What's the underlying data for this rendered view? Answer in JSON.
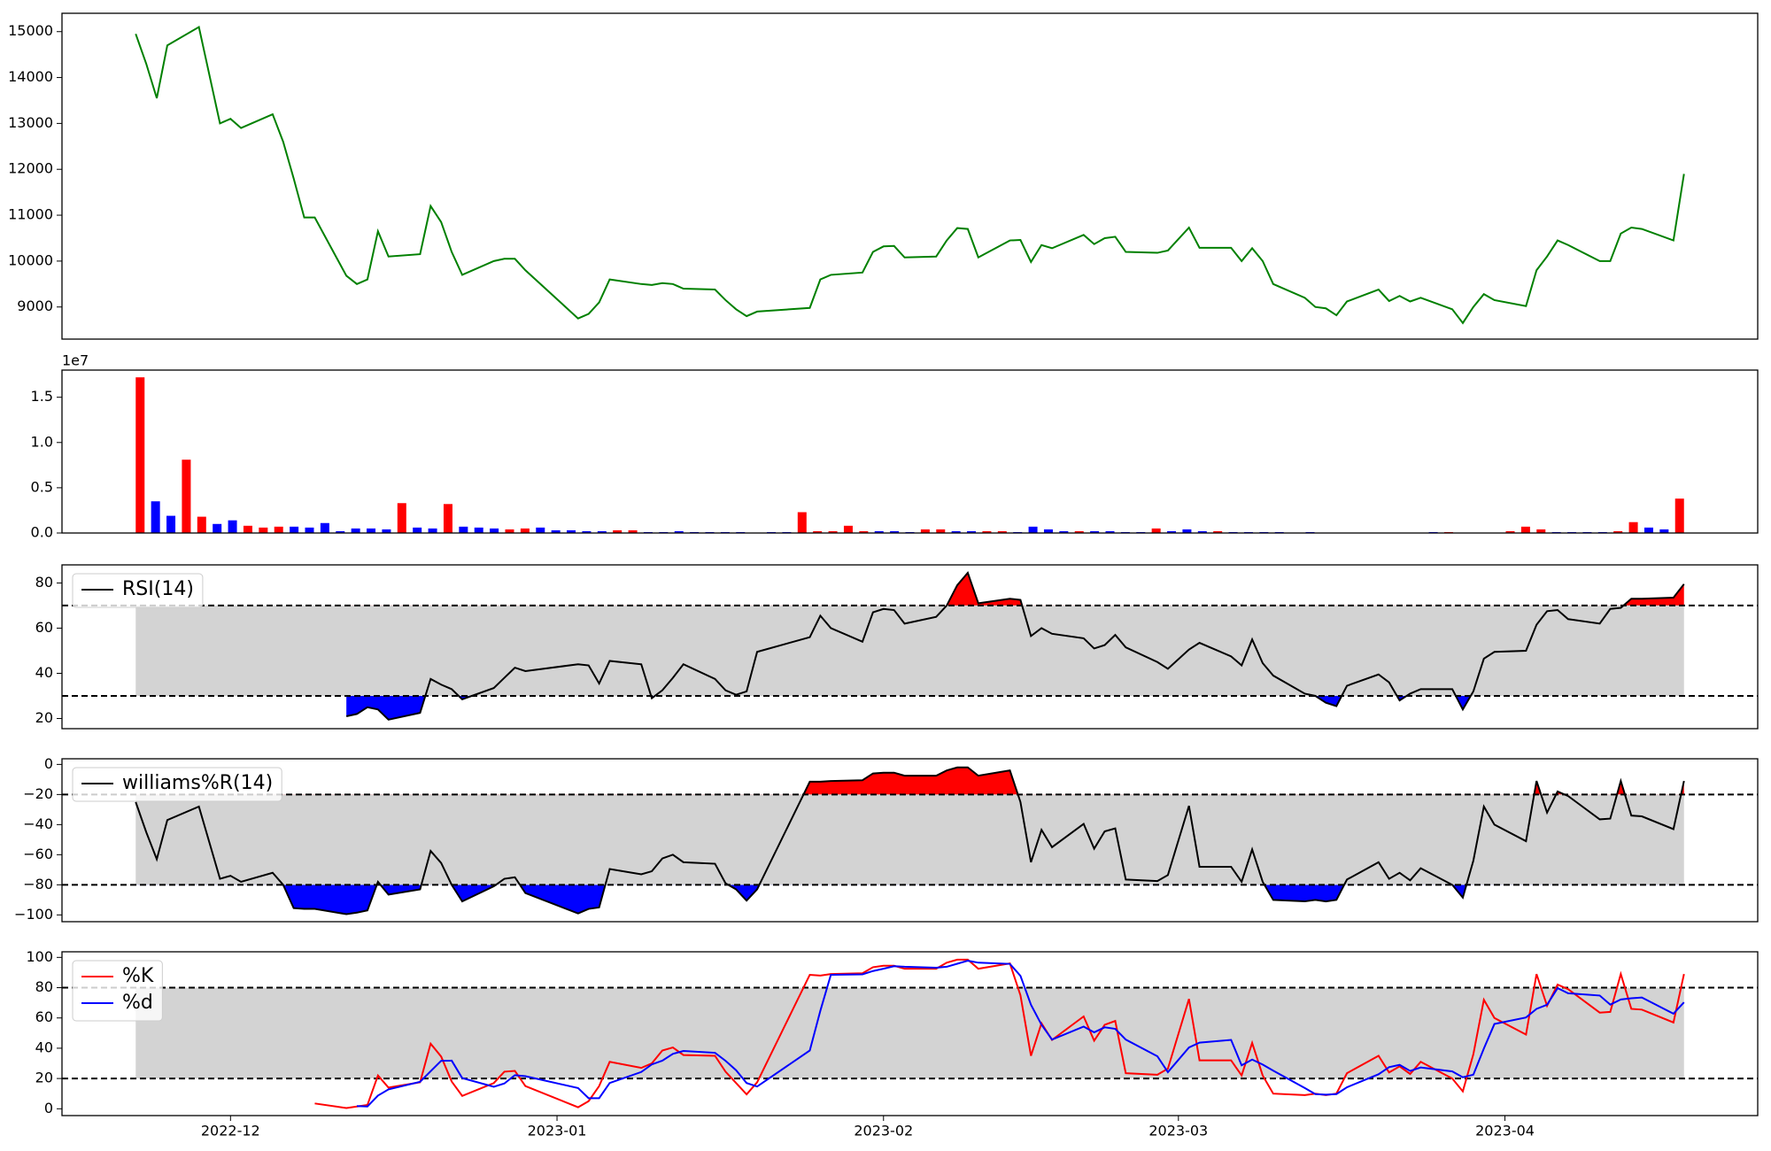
{
  "chart_data": [
    {
      "type": "line",
      "x": [
        "2022-11-22",
        "2022-11-23",
        "2022-11-24",
        "2022-11-25",
        "2022-11-28",
        "2022-11-29",
        "2022-11-30",
        "2022-12-01",
        "2022-12-02",
        "2022-12-05",
        "2022-12-06",
        "2022-12-07",
        "2022-12-08",
        "2022-12-09",
        "2022-12-12",
        "2022-12-13",
        "2022-12-14",
        "2022-12-15",
        "2022-12-16",
        "2022-12-19",
        "2022-12-20",
        "2022-12-21",
        "2022-12-22",
        "2022-12-23",
        "2022-12-26",
        "2022-12-27",
        "2022-12-28",
        "2022-12-29",
        "2023-01-03",
        "2023-01-04",
        "2023-01-05",
        "2023-01-06",
        "2023-01-09",
        "2023-01-10",
        "2023-01-11",
        "2023-01-12",
        "2023-01-13",
        "2023-01-16",
        "2023-01-17",
        "2023-01-18",
        "2023-01-19",
        "2023-01-20",
        "2023-01-25",
        "2023-01-26",
        "2023-01-27",
        "2023-01-30",
        "2023-01-31",
        "2023-02-01",
        "2023-02-02",
        "2023-02-03",
        "2023-02-06",
        "2023-02-07",
        "2023-02-08",
        "2023-02-09",
        "2023-02-10",
        "2023-02-13",
        "2023-02-14",
        "2023-02-15",
        "2023-02-16",
        "2023-02-17",
        "2023-02-20",
        "2023-02-21",
        "2023-02-22",
        "2023-02-23",
        "2023-02-24",
        "2023-02-27",
        "2023-02-28",
        "2023-03-02",
        "2023-03-03",
        "2023-03-06",
        "2023-03-07",
        "2023-03-08",
        "2023-03-09",
        "2023-03-10",
        "2023-03-13",
        "2023-03-14",
        "2023-03-15",
        "2023-03-16",
        "2023-03-17",
        "2023-03-20",
        "2023-03-21",
        "2023-03-22",
        "2023-03-23",
        "2023-03-24",
        "2023-03-27",
        "2023-03-28",
        "2023-03-29",
        "2023-03-30",
        "2023-03-31",
        "2023-04-03",
        "2023-04-04",
        "2023-04-05",
        "2023-04-06",
        "2023-04-07",
        "2023-04-10",
        "2023-04-11",
        "2023-04-12",
        "2023-04-13",
        "2023-04-14",
        "2023-04-17",
        "2023-04-18"
      ],
      "xlim": [
        "2022-11-15",
        "2023-04-25"
      ],
      "ylim": [
        8300,
        15400
      ],
      "yticks": [
        9000,
        10000,
        11000,
        12000,
        13000,
        14000,
        15000
      ],
      "series": [
        {
          "color": "green",
          "values": [
            14950,
            14300,
            13550,
            14700,
            15100,
            14050,
            13000,
            13100,
            12900,
            13200,
            12600,
            11800,
            10950,
            10950,
            9680,
            9500,
            9600,
            10650,
            10100,
            10150,
            11200,
            10850,
            10200,
            9700,
            10000,
            10050,
            10050,
            9800,
            8750,
            8850,
            9100,
            9600,
            9500,
            9480,
            9520,
            9500,
            9400,
            9380,
            9150,
            8950,
            8800,
            8900,
            8980,
            9600,
            9700,
            9750,
            10200,
            10320,
            10330,
            10080,
            10100,
            10450,
            10720,
            10700,
            10080,
            10450,
            10460,
            9980,
            10350,
            10280,
            10570,
            10370,
            10500,
            10530,
            10200,
            10180,
            10230,
            10730,
            10290,
            10290,
            10000,
            10280,
            10000,
            9500,
            9200,
            9000,
            8970,
            8820,
            9120,
            9380,
            9130,
            9240,
            9120,
            9200,
            8950,
            8650,
            9000,
            9280,
            9150,
            9020,
            9800,
            10100,
            10450,
            10350,
            10000,
            10000,
            10600,
            10730,
            10700,
            10450,
            11900
          ]
        }
      ]
    },
    {
      "type": "bar",
      "sharex": true,
      "values": [
        17200000,
        3500000,
        1900000,
        8100000,
        1800000,
        1000000,
        1400000,
        800000,
        600000,
        700000,
        700000,
        600000,
        1100000,
        200000,
        500000,
        500000,
        400000,
        3300000,
        600000,
        500000,
        3200000,
        700000,
        600000,
        500000,
        400000,
        500000,
        600000,
        300000,
        300000,
        200000,
        200000,
        300000,
        300000,
        100000,
        100000,
        200000,
        100000,
        100000,
        100000,
        100000,
        50000,
        100000,
        100000,
        2300000,
        200000,
        200000,
        800000,
        200000,
        200000,
        200000,
        100000,
        400000,
        400000,
        200000,
        200000,
        200000,
        200000,
        100000,
        700000,
        400000,
        200000,
        200000,
        200000,
        200000,
        100000,
        100000,
        500000,
        200000,
        400000,
        200000,
        200000,
        100000,
        100000,
        100000,
        100000,
        50000,
        100000,
        50000,
        30000,
        30000,
        30000,
        30000,
        30000,
        30000,
        100000,
        100000,
        30000,
        30000,
        30000,
        200000,
        700000,
        400000,
        100000,
        100000,
        100000,
        100000,
        200000,
        1200000,
        600000,
        400000,
        3800000
      ],
      "colors": [
        "red",
        "blue",
        "blue",
        "red",
        "red",
        "blue",
        "blue",
        "red",
        "red",
        "red",
        "blue",
        "blue",
        "blue",
        "blue",
        "blue",
        "blue",
        "blue",
        "red",
        "blue",
        "blue",
        "red",
        "blue",
        "blue",
        "blue",
        "red",
        "red",
        "blue",
        "blue",
        "blue",
        "blue",
        "blue",
        "red",
        "red",
        "blue",
        "blue",
        "blue",
        "blue",
        "blue",
        "blue",
        "blue",
        "blue",
        "blue",
        "blue",
        "red",
        "red",
        "red",
        "red",
        "red",
        "blue",
        "blue",
        "blue",
        "red",
        "red",
        "blue",
        "blue",
        "red",
        "red",
        "blue",
        "blue",
        "blue",
        "blue",
        "red",
        "blue",
        "blue",
        "blue",
        "blue",
        "red",
        "blue",
        "blue",
        "blue",
        "red",
        "blue",
        "blue",
        "blue",
        "blue",
        "blue",
        "blue",
        "blue",
        "blue",
        "blue",
        "blue",
        "blue",
        "blue",
        "blue",
        "blue",
        "red",
        "blue",
        "blue",
        "blue",
        "red",
        "red",
        "red",
        "blue",
        "blue",
        "blue",
        "blue",
        "red",
        "red",
        "blue",
        "blue",
        "red"
      ],
      "ylim": [
        0,
        18000000
      ],
      "yticks": [
        {
          "value": 0,
          "label": "0.0"
        },
        {
          "value": 5000000,
          "label": "0.5"
        },
        {
          "value": 10000000,
          "label": "1.0"
        },
        {
          "value": 15000000,
          "label": "1.5"
        }
      ],
      "offset_label": "1e7"
    },
    {
      "type": "line",
      "sharex": true,
      "ylim": [
        15.5,
        88
      ],
      "yticks": [
        20,
        40,
        60,
        80
      ],
      "thresholds": [
        30,
        70
      ],
      "band_color": "lightgray",
      "fill_colors": {
        "above": "red",
        "below": "blue"
      },
      "legend": "upper left",
      "series": [
        {
          "name": "RSI(14)",
          "color": "black",
          "values": [
            null,
            null,
            null,
            null,
            null,
            null,
            null,
            null,
            null,
            null,
            null,
            null,
            null,
            null,
            21,
            22,
            25,
            24,
            19.5,
            22.5,
            37.5,
            35,
            33,
            28.5,
            33.5,
            38,
            42.5,
            41,
            44,
            43.5,
            35.5,
            45.5,
            44,
            29,
            32.5,
            38,
            44,
            37.5,
            32.5,
            30.5,
            32,
            49.5,
            56,
            65.5,
            60,
            54,
            67,
            68.5,
            68,
            62,
            65,
            70,
            79,
            84.5,
            71,
            73,
            72.5,
            56.5,
            60,
            57.5,
            55.5,
            51,
            52.5,
            57,
            51.5,
            45,
            42,
            50.5,
            53.5,
            47.5,
            43.5,
            55,
            44.5,
            39,
            31,
            30,
            27,
            25.5,
            34.5,
            39.5,
            36,
            28,
            31,
            33,
            33,
            24,
            32,
            46.5,
            49.5,
            50,
            61.5,
            67.5,
            68,
            64,
            62,
            68.5,
            69,
            73,
            73,
            73.5,
            79.5
          ]
        }
      ]
    },
    {
      "type": "line",
      "sharex": true,
      "ylim": [
        -104.5,
        3.75
      ],
      "yticks": [
        {
          "value": -100,
          "label": "−100"
        },
        {
          "value": -80,
          "label": "−80"
        },
        {
          "value": -60,
          "label": "−60"
        },
        {
          "value": -40,
          "label": "−40"
        },
        {
          "value": -20,
          "label": "−20"
        },
        0
      ],
      "thresholds": [
        -80,
        -20
      ],
      "band_color": "lightgray",
      "fill_colors": {
        "above": "red",
        "below": "blue"
      },
      "legend": "upper left",
      "series": [
        {
          "name": "williams%R(14)",
          "color": "black",
          "values": [
            -25,
            -45,
            -63,
            -37,
            -28,
            -52,
            -76,
            -74,
            -78,
            -72,
            -80,
            -95.5,
            -96,
            -96,
            -99.5,
            -98.5,
            -97,
            -78,
            -86.5,
            -83,
            -57.5,
            -65.5,
            -80,
            -91,
            -81,
            -76,
            -75,
            -85.5,
            -99,
            -96,
            -95,
            -69.5,
            -73,
            -71,
            -62.5,
            -60,
            -65,
            -66,
            -79,
            -83,
            -90.5,
            -83,
            -11.5,
            -11.5,
            -11,
            -10.5,
            -6,
            -5.5,
            -5.5,
            -7.5,
            -7.5,
            -4,
            -2,
            -2,
            -7.5,
            -4,
            -25,
            -65,
            -43.5,
            -55,
            -39.5,
            -56,
            -44.5,
            -42.5,
            -76.5,
            -77.5,
            -73.5,
            -27.5,
            -68,
            -68,
            -78,
            -56.5,
            -78,
            -90,
            -91,
            -90,
            -91,
            -90,
            -76.5,
            -65,
            -76,
            -72,
            -77,
            -69,
            -80,
            -88.5,
            -64,
            -28,
            -40,
            -51,
            -11,
            -32,
            -18,
            -21,
            -36.5,
            -36,
            -11,
            -34,
            -34.5,
            -43,
            -11
          ]
        }
      ]
    },
    {
      "type": "line",
      "sharex": true,
      "ylim": [
        -4.5,
        103.7
      ],
      "yticks": [
        0,
        20,
        40,
        60,
        80,
        100
      ],
      "thresholds": [
        20,
        80
      ],
      "band_color": "lightgray",
      "legend": "upper left",
      "xticks": [
        "2022-12",
        "2023-01",
        "2023-02",
        "2023-03",
        "2023-04"
      ],
      "series": [
        {
          "name": "%K",
          "color": "red",
          "values": [
            null,
            null,
            null,
            null,
            null,
            null,
            null,
            null,
            null,
            null,
            null,
            null,
            null,
            3.5,
            0.5,
            1.5,
            2.5,
            22,
            14,
            17.5,
            43,
            34.5,
            18,
            8.5,
            17,
            24.5,
            25,
            15,
            1,
            5,
            15,
            31,
            27,
            30,
            38.5,
            40.5,
            35.5,
            35,
            24.5,
            17,
            9.5,
            17.5,
            88.5,
            88,
            89,
            89.5,
            93.5,
            94.5,
            94.5,
            92.5,
            92.5,
            96.5,
            98.5,
            98.5,
            92.5,
            96,
            75,
            35,
            56.5,
            45.5,
            61,
            45,
            55.5,
            58,
            23.5,
            22.5,
            26.5,
            72.5,
            32,
            32,
            22,
            43.5,
            22,
            10,
            9,
            10,
            9,
            10,
            23.5,
            35,
            24,
            28,
            23,
            31,
            20,
            11.5,
            36,
            72,
            60,
            49,
            89,
            68,
            82,
            79,
            63.5,
            64,
            89,
            66,
            65.5,
            57,
            89
          ]
        },
        {
          "name": "%d",
          "color": "blue",
          "values": [
            null,
            null,
            null,
            null,
            null,
            null,
            null,
            null,
            null,
            null,
            null,
            null,
            null,
            null,
            null,
            1.8,
            1.5,
            8.7,
            12.8,
            17.8,
            24.8,
            31.7,
            31.8,
            20.3,
            14.5,
            16.7,
            22.2,
            21.5,
            13.7,
            7,
            7,
            17,
            24.3,
            29.3,
            31.8,
            36.3,
            38.2,
            37,
            31.7,
            25.5,
            17,
            14.7,
            38.5,
            64.7,
            88.5,
            88.8,
            91,
            92.5,
            94.2,
            93.8,
            93.2,
            93.8,
            95.8,
            97.8,
            96.5,
            95.7,
            87.8,
            68.7,
            55.5,
            45.7,
            54.3,
            50.5,
            53.8,
            52.8,
            45.7,
            34.7,
            24.2,
            40.5,
            43.7,
            45.5,
            28.7,
            32.5,
            29.2,
            25.2,
            13.7,
            9.7,
            9.3,
            9.7,
            14.2,
            22.8,
            27.5,
            29,
            25,
            27.3,
            24.7,
            20.8,
            22.5,
            39.8,
            56,
            60.3,
            66,
            68.7,
            79.7,
            76.3,
            74.8,
            68.8,
            72.2,
            73,
            73.5,
            62.8,
            70.3
          ]
        }
      ]
    }
  ]
}
